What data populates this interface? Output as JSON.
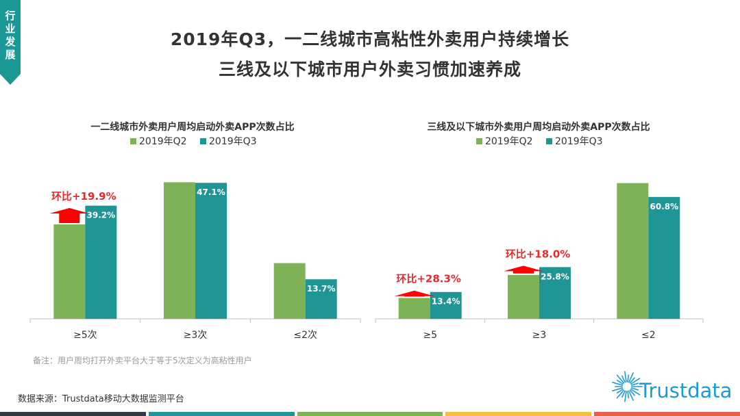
{
  "side_tag": {
    "text": "行业发展",
    "color": "#1a9896"
  },
  "headline": {
    "line1": "2019年Q3，一二线城市高粘性外卖用户持续增长",
    "line2": "三线及以下城市用户外卖习惯加速养成"
  },
  "colors": {
    "q2": "#7db356",
    "q3": "#1f9695",
    "arrow": "#ff0000",
    "growth": "#e32b2b"
  },
  "chart_data": [
    {
      "type": "bar",
      "title": "一二线城市外卖用户周均启动外卖APP次数占比",
      "categories": [
        "≥5次",
        "≥3次",
        "≤2次"
      ],
      "series": [
        {
          "name": "2019年Q2",
          "values": [
            32.7,
            47.3,
            19.3
          ],
          "labels": [
            "",
            "",
            ""
          ]
        },
        {
          "name": "2019年Q3",
          "values": [
            39.2,
            47.1,
            13.7
          ],
          "labels": [
            "39.2%",
            "47.1%",
            "13.7%"
          ]
        }
      ],
      "ylim": [
        0,
        50
      ],
      "annotations": [
        {
          "category_index": 0,
          "text": "环比+19.9%"
        }
      ]
    },
    {
      "type": "bar",
      "title": "三线及以下城市外卖用户周均启动外卖APP次数占比",
      "categories": [
        "≥5",
        "≥3",
        "≤2"
      ],
      "series": [
        {
          "name": "2019年Q2",
          "values": [
            10.4,
            21.9,
            67.7
          ],
          "labels": [
            "",
            "",
            ""
          ]
        },
        {
          "name": "2019年Q3",
          "values": [
            13.4,
            25.8,
            60.8
          ],
          "labels": [
            "13.4%",
            "25.8%",
            "60.8%"
          ]
        }
      ],
      "ylim": [
        0,
        72
      ],
      "annotations": [
        {
          "category_index": 0,
          "text": "环比+28.3%"
        },
        {
          "category_index": 1,
          "text": "环比+18.0%"
        }
      ]
    }
  ],
  "note": "备注：用户周均打开外卖平台大于等于5次定义为高粘性用户",
  "source": "数据来源：Trustdata移动大数据监测平台",
  "brand": {
    "name": "Trustdata",
    "color": "#1b9ad6"
  },
  "bottom_strip": [
    "#2e3a46",
    "#1f9695",
    "#7db356",
    "#f2c043",
    "#e8604c"
  ]
}
